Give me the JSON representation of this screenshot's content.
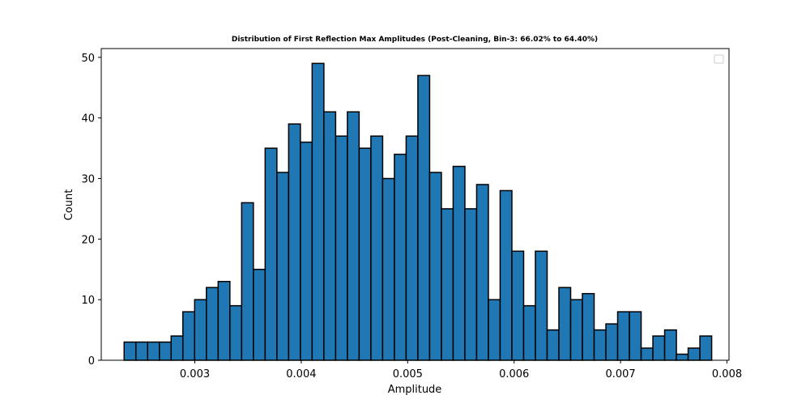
{
  "chart_data": {
    "type": "bar",
    "title": "Distribution of First Reflection Max Amplitudes (Post-Cleaning, Bin-3: 66.02% to 64.40%)",
    "xlabel": "Amplitude",
    "ylabel": "Count",
    "xlim": [
      0.002121,
      0.008019
    ],
    "ylim": [
      0,
      51.45
    ],
    "xticks": [
      0.003,
      0.004,
      0.005,
      0.006,
      0.007,
      0.008
    ],
    "yticks": [
      0,
      10,
      20,
      30,
      40,
      50
    ],
    "bin_start": 0.002336,
    "bin_width": 0.0001104,
    "counts": [
      3,
      3,
      3,
      3,
      4,
      8,
      10,
      12,
      13,
      9,
      26,
      15,
      35,
      31,
      39,
      36,
      49,
      41,
      37,
      41,
      35,
      37,
      30,
      34,
      37,
      47,
      31,
      25,
      32,
      25,
      29,
      10,
      28,
      18,
      9,
      18,
      5,
      12,
      10,
      11,
      5,
      6,
      8,
      8,
      2,
      4,
      5,
      1,
      2,
      4
    ],
    "bar_color": "#1f77b4",
    "edge_color": "#000000",
    "legend": "empty box, top-right",
    "grid": false
  }
}
